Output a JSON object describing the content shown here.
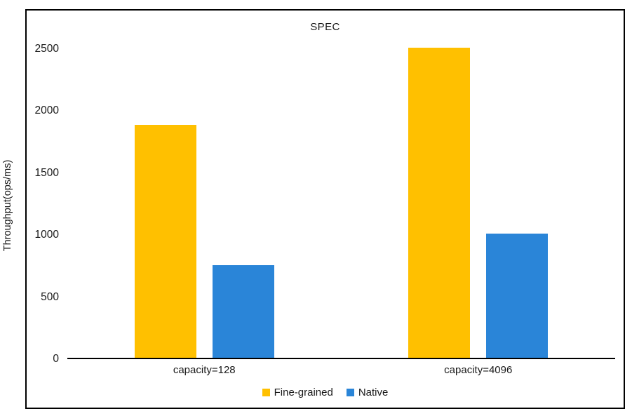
{
  "chart_data": {
    "type": "bar",
    "title": "SPEC",
    "xlabel": "",
    "ylabel": "Throughput(ops/ms)",
    "categories": [
      "capacity=128",
      "capacity=4096"
    ],
    "series": [
      {
        "name": "Fine-grained",
        "color": "#FFC000",
        "values": [
          1890,
          2510
        ]
      },
      {
        "name": "Native",
        "color": "#2A85D8",
        "values": [
          760,
          1010
        ]
      }
    ],
    "y_ticks": [
      0,
      500,
      1000,
      1500,
      2000,
      2500
    ],
    "ylim": [
      0,
      2500
    ],
    "grid": false,
    "legend_position": "bottom",
    "colors": {
      "border": "#000000",
      "axis_line": "#000000",
      "text": "#1a1a1a",
      "background": "#ffffff"
    }
  }
}
